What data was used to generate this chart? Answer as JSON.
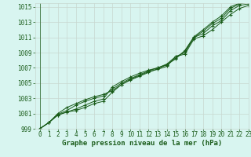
{
  "background_color": "#d8f5f0",
  "plot_bg_color": "#d8f5f0",
  "grid_color": "#c8d8d0",
  "line_color": "#1a5c1a",
  "marker_color": "#1a5c1a",
  "xlim": [
    -0.5,
    23
  ],
  "ylim": [
    999,
    1015.5
  ],
  "yticks": [
    999,
    1001,
    1003,
    1005,
    1007,
    1009,
    1011,
    1013,
    1015
  ],
  "xticks": [
    0,
    1,
    2,
    3,
    4,
    5,
    6,
    7,
    8,
    9,
    10,
    11,
    12,
    13,
    14,
    15,
    16,
    17,
    18,
    19,
    20,
    21,
    22,
    23
  ],
  "series": [
    [
      999.0,
      999.8,
      1000.8,
      1001.2,
      1001.4,
      1001.8,
      1002.3,
      1002.6,
      1003.8,
      1004.8,
      1005.5,
      1006.0,
      1006.5,
      1006.8,
      1007.2,
      1008.5,
      1008.8,
      1010.8,
      1011.2,
      1012.0,
      1013.0,
      1014.0,
      1014.8,
      1015.2
    ],
    [
      999.0,
      999.8,
      1000.8,
      1001.2,
      1001.6,
      1002.1,
      1002.6,
      1002.9,
      1004.5,
      1005.2,
      1005.8,
      1006.3,
      1006.7,
      1007.0,
      1007.5,
      1008.5,
      1009.0,
      1011.0,
      1011.5,
      1012.5,
      1013.2,
      1014.5,
      1015.2,
      1015.4
    ],
    [
      999.0,
      999.8,
      1000.9,
      1001.4,
      1002.1,
      1002.6,
      1003.0,
      1003.3,
      1004.2,
      1005.0,
      1005.6,
      1006.1,
      1006.6,
      1007.0,
      1007.4,
      1008.3,
      1009.2,
      1011.0,
      1011.8,
      1012.8,
      1013.5,
      1014.8,
      1015.4,
      1015.6
    ],
    [
      999.0,
      999.8,
      1001.0,
      1001.8,
      1002.3,
      1002.8,
      1003.2,
      1003.5,
      1004.0,
      1004.8,
      1005.4,
      1005.9,
      1006.4,
      1006.9,
      1007.4,
      1008.2,
      1009.3,
      1011.1,
      1012.0,
      1013.0,
      1013.8,
      1015.0,
      1015.5,
      1015.7
    ]
  ],
  "xlabel": "Graphe pression niveau de la mer (hPa)",
  "font_color": "#1a5c1a",
  "tick_fontsize": 5.5,
  "xlabel_fontsize": 6.5
}
